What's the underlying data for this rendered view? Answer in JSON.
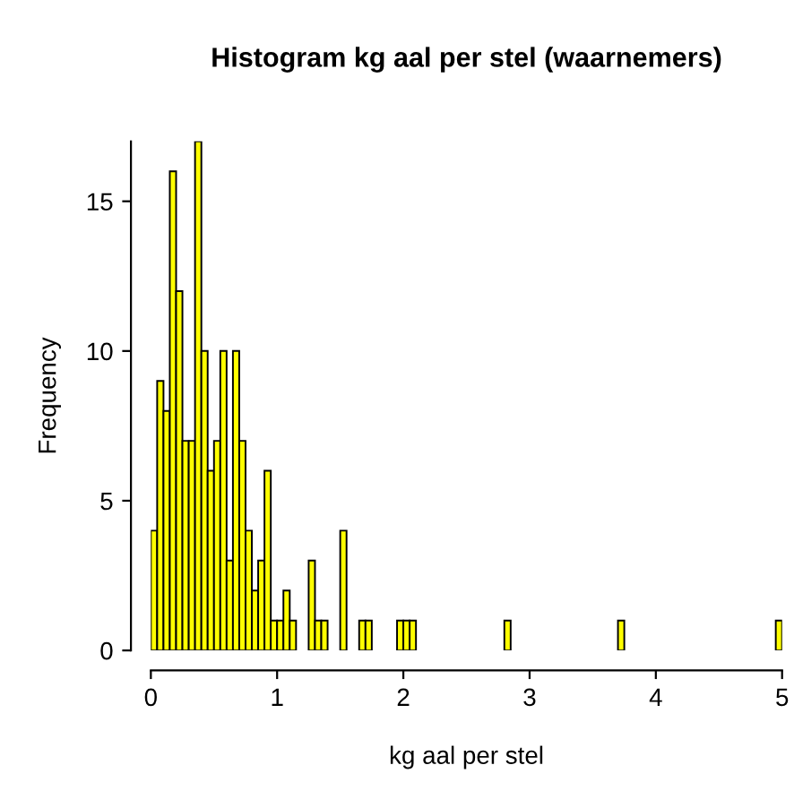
{
  "chart_data": {
    "type": "histogram",
    "title": "Histogram kg aal per stel (waarnemers)",
    "xlabel": "kg aal per stel",
    "ylabel": "Frequency",
    "bins": [
      0,
      0.05,
      0.1,
      0.15,
      0.2,
      0.25,
      0.3,
      0.35,
      0.4,
      0.45,
      0.5,
      0.55,
      0.6,
      0.65,
      0.7,
      0.75,
      0.8,
      0.85,
      0.9,
      0.95,
      1,
      1.05,
      1.1,
      1.15,
      1.2,
      1.25,
      1.3,
      1.35,
      1.4,
      1.45,
      1.5,
      1.55,
      1.6,
      1.65,
      1.7,
      1.75,
      1.8,
      1.85,
      1.9,
      1.95,
      2,
      2.05,
      2.1,
      2.15,
      2.2,
      2.25,
      2.3,
      2.35,
      2.4,
      2.45,
      2.5,
      2.55,
      2.6,
      2.65,
      2.7,
      2.75,
      2.8,
      2.85,
      2.9,
      2.95,
      3,
      3.05,
      3.1,
      3.15,
      3.2,
      3.25,
      3.3,
      3.35,
      3.4,
      3.45,
      3.5,
      3.55,
      3.6,
      3.65,
      3.7,
      3.75,
      3.8,
      3.85,
      3.9,
      3.95,
      4,
      4.05,
      4.1,
      4.15,
      4.2,
      4.25,
      4.3,
      4.35,
      4.4,
      4.45,
      4.5,
      4.55,
      4.6,
      4.65,
      4.7,
      4.75,
      4.8,
      4.85,
      4.9,
      4.95,
      5
    ],
    "values": [
      4,
      9,
      8,
      16,
      12,
      7,
      7,
      17,
      10,
      6,
      7,
      10,
      3,
      10,
      7,
      4,
      2,
      3,
      6,
      1,
      1,
      2,
      1,
      0,
      0,
      3,
      1,
      1,
      0,
      0,
      4,
      0,
      0,
      1,
      1,
      0,
      0,
      0,
      0,
      1,
      1,
      1,
      0,
      0,
      0,
      0,
      0,
      0,
      0,
      0,
      0,
      0,
      0,
      0,
      0,
      0,
      1,
      0,
      0,
      0,
      0,
      0,
      0,
      0,
      0,
      0,
      0,
      0,
      0,
      0,
      0,
      0,
      0,
      0,
      1,
      0,
      0,
      0,
      0,
      0,
      0,
      0,
      0,
      0,
      0,
      0,
      0,
      0,
      0,
      0,
      0,
      0,
      0,
      0,
      0,
      0,
      0,
      0,
      0,
      1
    ],
    "color": "#ffff00",
    "xlim": [
      0,
      5
    ],
    "ylim": [
      0,
      17
    ],
    "xticks": [
      0,
      1,
      2,
      3,
      4,
      5
    ],
    "yticks": [
      0,
      5,
      10,
      15
    ]
  }
}
